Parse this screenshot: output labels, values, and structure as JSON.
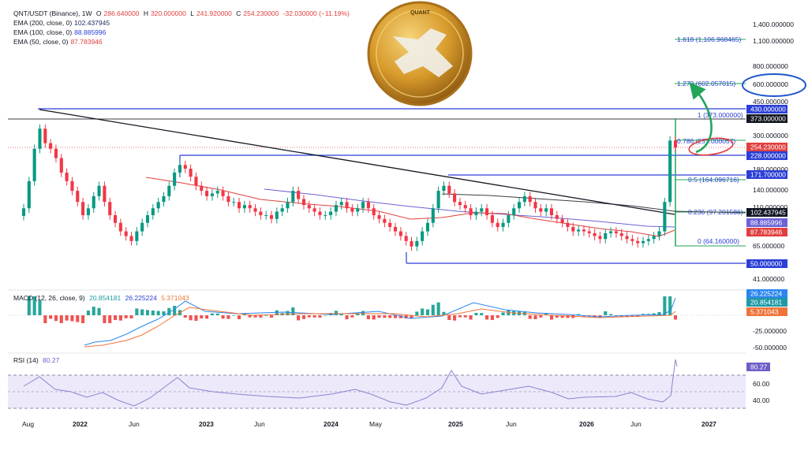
{
  "header": {
    "symbol": "QNT/USDT (Binance), 1W",
    "ohlc": [
      {
        "k": "O",
        "v": "286.640000"
      },
      {
        "k": "H",
        "v": "320.000000"
      },
      {
        "k": "L",
        "v": "241.920000"
      },
      {
        "k": "C",
        "v": "254.230000"
      }
    ],
    "change": "-32.030000 (−11.19%)",
    "ema200_label": "EMA (200, close, 0)",
    "ema200_value": "102.437945",
    "ema100_label": "EMA (100, close, 0)",
    "ema100_value": "88.885996",
    "ema50_label": "EMA (50, close, 0)",
    "ema50_value": "87.783946",
    "macd_label": "MACD (12, 26, close, 9)",
    "macd_v1": "20.854181",
    "macd_v2": "26.225224",
    "macd_v3": "5.371043",
    "rsi_label": "RSI (14)",
    "rsi_value": "80.27"
  },
  "colors": {
    "up": "#089981",
    "down": "#f23645",
    "ema200": "#3d3d45",
    "ema100": "#6b63d6",
    "ema50": "#e0403f",
    "hline": "#2b3fd6",
    "trend": "#131722",
    "green_arrow": "#22a55a",
    "macd": "#2b86f0",
    "signal": "#f0743a",
    "rsi": "#8a84cc"
  },
  "right_axis": {
    "ticks": [
      "1,400.000000",
      "1,100.000000",
      "800.000000",
      "600.000000",
      "450.000000",
      "300.000000",
      "180.000000",
      "140.000000",
      "110.000000",
      "65.000000",
      "41.000000"
    ],
    "tags": [
      {
        "text": "430.000000",
        "style": "blue"
      },
      {
        "text": "373.000000",
        "style": "dark"
      },
      {
        "text": "254.230000",
        "style": "red"
      },
      {
        "text": "228.000000",
        "style": "blue"
      },
      {
        "text": "171.700000",
        "style": "blue"
      },
      {
        "text": "102.437945",
        "style": "dark"
      },
      {
        "text": "88.885996",
        "style": "purple"
      },
      {
        "text": "87.783946",
        "style": "redsolid"
      },
      {
        "text": "50.000000",
        "style": "blue"
      }
    ],
    "macd_ticks": [
      "-25.000000",
      "-50.000000"
    ],
    "macd_tags": [
      "26.225224",
      "20.854181",
      "5.371043"
    ],
    "rsi_ticks": [
      "60.00",
      "40.00"
    ],
    "rsi_tag": "80.27"
  },
  "fib_labels": [
    "1.618 (1,106.968465)",
    "1.272 (602.057015)",
    "1 (373.000000)",
    "0.786 (257.000057)",
    "0.5 (164.096716)",
    "0.236 (97.201586)",
    "0 (64.160000)"
  ],
  "x_axis": [
    "Aug",
    "2022",
    "Jun",
    "2023",
    "Jun",
    "2024",
    "May",
    "2025",
    "Jun",
    "2026",
    "Jun",
    "2027"
  ],
  "logo": "QUANT",
  "chart_data": {
    "type": "candlestick",
    "title": "QNT/USDT (Binance), 1W",
    "scale": "log",
    "ylim": [
      38,
      1500
    ],
    "closes": [
      110,
      160,
      250,
      330,
      270,
      250,
      220,
      180,
      160,
      140,
      120,
      100,
      110,
      130,
      150,
      120,
      100,
      90,
      80,
      75,
      70,
      80,
      90,
      100,
      110,
      120,
      130,
      150,
      180,
      200,
      190,
      170,
      150,
      140,
      130,
      135,
      140,
      130,
      120,
      120,
      110,
      115,
      110,
      105,
      100,
      100,
      95,
      105,
      110,
      120,
      140,
      125,
      115,
      110,
      105,
      100,
      100,
      105,
      115,
      120,
      110,
      105,
      110,
      120,
      110,
      100,
      95,
      90,
      85,
      80,
      75,
      70,
      65,
      70,
      80,
      90,
      110,
      140,
      150,
      135,
      120,
      115,
      110,
      100,
      105,
      110,
      100,
      90,
      85,
      90,
      100,
      110,
      120,
      130,
      120,
      110,
      105,
      110,
      100,
      95,
      90,
      85,
      80,
      82,
      80,
      78,
      75,
      72,
      78,
      80,
      78,
      75,
      72,
      70,
      68,
      70,
      72,
      75,
      80,
      120,
      280,
      254.23
    ],
    "horizontal_levels": [
      430,
      373,
      228,
      171.7,
      50
    ],
    "fib_levels": [
      {
        "ratio": 1.618,
        "price": 1106.968465
      },
      {
        "ratio": 1.272,
        "price": 602.057015
      },
      {
        "ratio": 1,
        "price": 373.0
      },
      {
        "ratio": 0.786,
        "price": 257.000057
      },
      {
        "ratio": 0.5,
        "price": 164.096716
      },
      {
        "ratio": 0.236,
        "price": 97.201586
      },
      {
        "ratio": 0,
        "price": 64.16
      }
    ],
    "ema": {
      "ema200": 102.437945,
      "ema100": 88.885996,
      "ema50": 87.783946
    },
    "macd": {
      "macd": 20.854181,
      "signal": 26.225224,
      "hist": 5.371043
    },
    "rsi": 80.27,
    "x_ticks": [
      "Aug",
      "2022",
      "Jun",
      "2023",
      "Jun",
      "2024",
      "May",
      "2025",
      "Jun",
      "2026",
      "Jun",
      "2027"
    ]
  }
}
